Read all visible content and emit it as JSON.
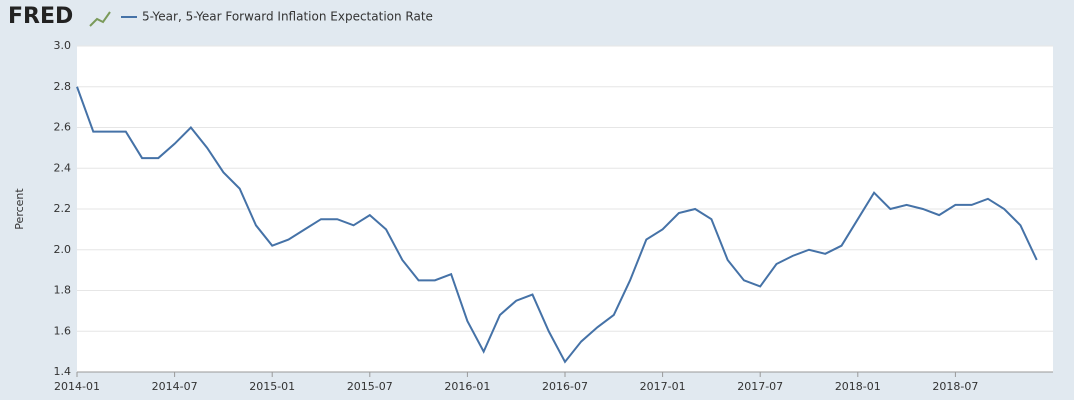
{
  "chart_data": {
    "type": "line",
    "logo": "FRED",
    "ylabel": "Percent",
    "x": [
      "2014-01",
      "2014-02",
      "2014-03",
      "2014-04",
      "2014-05",
      "2014-06",
      "2014-07",
      "2014-08",
      "2014-09",
      "2014-10",
      "2014-11",
      "2014-12",
      "2015-01",
      "2015-02",
      "2015-03",
      "2015-04",
      "2015-05",
      "2015-06",
      "2015-07",
      "2015-08",
      "2015-09",
      "2015-10",
      "2015-11",
      "2015-12",
      "2016-01",
      "2016-02",
      "2016-03",
      "2016-04",
      "2016-05",
      "2016-06",
      "2016-07",
      "2016-08",
      "2016-09",
      "2016-10",
      "2016-11",
      "2016-12",
      "2017-01",
      "2017-02",
      "2017-03",
      "2017-04",
      "2017-05",
      "2017-06",
      "2017-07",
      "2017-08",
      "2017-09",
      "2017-10",
      "2017-11",
      "2017-12",
      "2018-01",
      "2018-02",
      "2018-03",
      "2018-04",
      "2018-05",
      "2018-06",
      "2018-07",
      "2018-08",
      "2018-09",
      "2018-10",
      "2018-11",
      "2018-12"
    ],
    "series": [
      {
        "name": "5-Year, 5-Year Forward Inflation Expectation Rate",
        "color": "#4572a7",
        "values": [
          2.8,
          2.58,
          2.58,
          2.58,
          2.45,
          2.45,
          2.52,
          2.6,
          2.5,
          2.38,
          2.3,
          2.12,
          2.02,
          2.05,
          2.1,
          2.15,
          2.15,
          2.12,
          2.17,
          2.1,
          1.95,
          1.85,
          1.85,
          1.88,
          1.65,
          1.5,
          1.68,
          1.75,
          1.78,
          1.6,
          1.45,
          1.55,
          1.62,
          1.68,
          1.85,
          2.05,
          2.1,
          2.18,
          2.2,
          2.15,
          1.95,
          1.85,
          1.82,
          1.93,
          1.97,
          2.0,
          1.98,
          2.02,
          2.15,
          2.28,
          2.2,
          2.22,
          2.2,
          2.17,
          2.22,
          2.22,
          2.25,
          2.2,
          2.12,
          1.95
        ]
      }
    ],
    "xlim": [
      "2014-01",
      "2019-01"
    ],
    "xticks": [
      "2014-01",
      "2014-07",
      "2015-01",
      "2015-07",
      "2016-01",
      "2016-07",
      "2017-01",
      "2017-07",
      "2018-01",
      "2018-07"
    ],
    "ylim": [
      1.4,
      3.0
    ],
    "yticks": [
      1.4,
      1.6,
      1.8,
      {
        "value": 2,
        "label": "2.0"
      },
      2.2,
      2.4,
      2.6,
      2.8,
      {
        "value": 3,
        "label": "3.0"
      }
    ],
    "grid": true
  }
}
